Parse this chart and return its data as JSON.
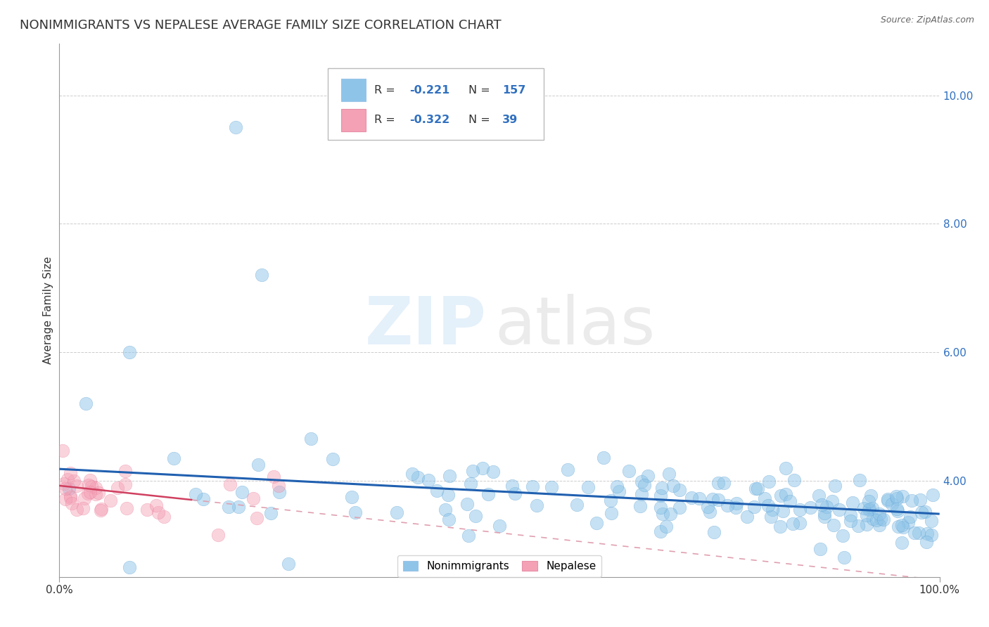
{
  "title": "NONIMMIGRANTS VS NEPALESE AVERAGE FAMILY SIZE CORRELATION CHART",
  "source": "Source: ZipAtlas.com",
  "ylabel": "Average Family Size",
  "xlim": [
    0.0,
    1.0
  ],
  "ylim": [
    2.5,
    10.8
  ],
  "yticks": [
    4.0,
    6.0,
    8.0,
    10.0
  ],
  "series1": {
    "label": "Nonimmigrants",
    "color": "#8ec4e8",
    "edge_color": "#5a9fd4",
    "R": -0.221,
    "N": 157,
    "alpha": 0.5,
    "size": 180
  },
  "series2": {
    "label": "Nepalese",
    "color": "#f4a0b5",
    "edge_color": "#e87090",
    "R": -0.322,
    "N": 39,
    "alpha": 0.45,
    "size": 180
  },
  "background_color": "#ffffff",
  "grid_color": "#aaaaaa",
  "title_fontsize": 13,
  "axis_label_fontsize": 11,
  "tick_fontsize": 11,
  "legend_R_color": "#3070c0",
  "legend_N_color": "#3070c0",
  "blue_line_color": "#2060b0",
  "pink_line_color": "#d04060",
  "pink_dash_color": "#e0a0b0"
}
